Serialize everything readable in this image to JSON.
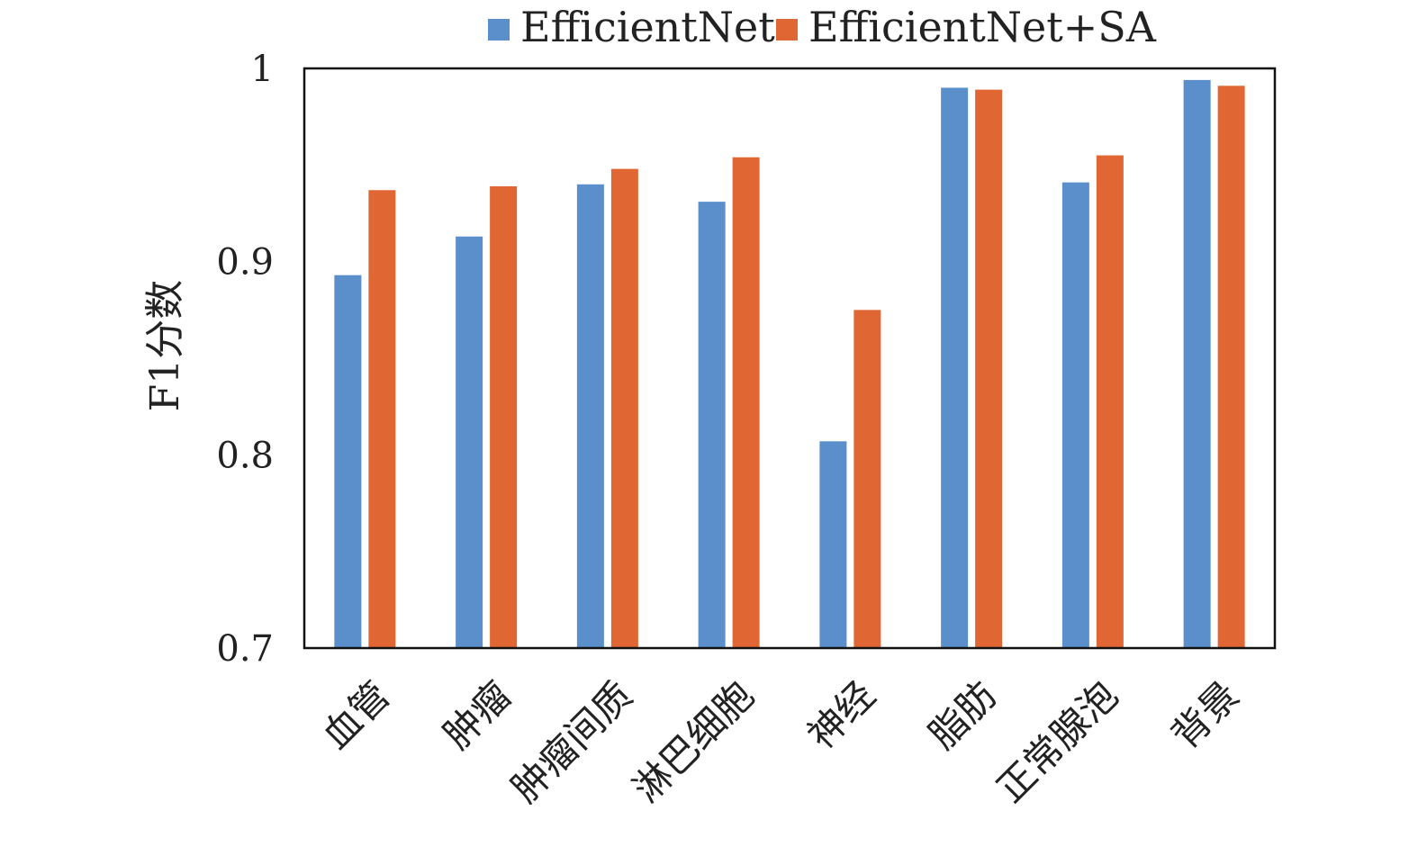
{
  "chart_data": {
    "type": "bar",
    "title": "",
    "xlabel": "",
    "ylabel": "F1分数",
    "ylim": [
      0.7,
      1.0
    ],
    "yticks": [
      0.7,
      0.8,
      0.9,
      1
    ],
    "ytick_labels": [
      "0.7",
      "0.8",
      "0.9",
      "1"
    ],
    "grid": false,
    "legend_position": "top",
    "categories": [
      "血管",
      "肿瘤",
      "肿瘤间质",
      "淋巴细胞",
      "神经",
      "脂肪",
      "正常腺泡",
      "背景"
    ],
    "series": [
      {
        "name": "EfficientNet",
        "color": "#5b8fcb",
        "values": [
          0.893,
          0.913,
          0.94,
          0.931,
          0.807,
          0.99,
          0.941,
          0.994
        ]
      },
      {
        "name": "EfficientNet+SA",
        "color": "#e06633",
        "values": [
          0.937,
          0.939,
          0.948,
          0.954,
          0.875,
          0.989,
          0.955,
          0.991
        ]
      }
    ]
  }
}
